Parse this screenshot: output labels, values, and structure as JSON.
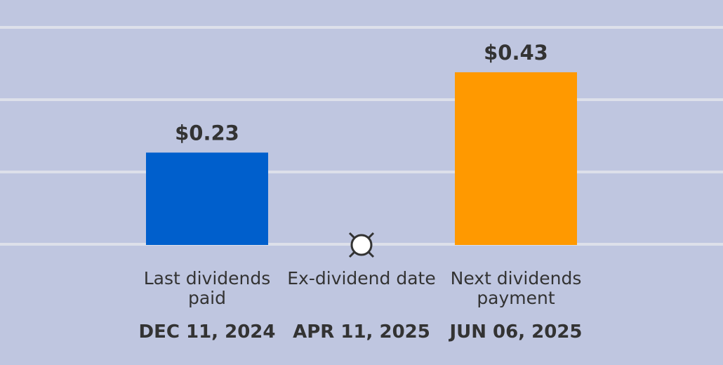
{
  "chart_data": {
    "type": "bar",
    "categories": [
      "Last dividends paid",
      "Ex-dividend date",
      "Next dividends payment"
    ],
    "dates": [
      "DEC 11, 2024",
      "APR 11, 2025",
      "JUN 06, 2025"
    ],
    "values": [
      0.23,
      null,
      0.43
    ],
    "value_labels": [
      "$0.23",
      null,
      "$0.43"
    ],
    "colors": [
      "#005fcc",
      null,
      "#ff9900"
    ],
    "ylim": [
      0,
      0.54
    ],
    "yticks": [
      0,
      0.18,
      0.36,
      0.54
    ],
    "grid": true
  }
}
